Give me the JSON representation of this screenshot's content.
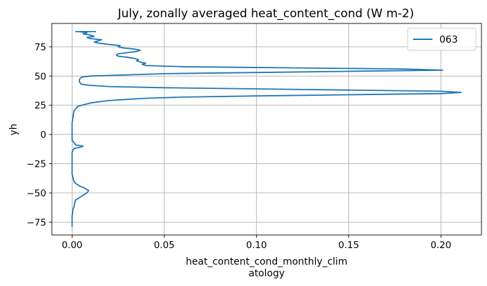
{
  "chart_data": {
    "type": "line",
    "title": "July, zonally averaged heat_content_cond (W m-2)",
    "xlabel_lines": [
      "heat_content_cond_monthly_clim",
      "atology"
    ],
    "ylabel": "yh",
    "xlim": [
      -0.011,
      0.222
    ],
    "ylim": [
      -86,
      95
    ],
    "xticks": [
      0.0,
      0.05,
      0.1,
      0.15,
      0.2
    ],
    "xtick_labels": [
      "0.00",
      "0.05",
      "0.10",
      "0.15",
      "0.20"
    ],
    "yticks": [
      -75,
      -50,
      -25,
      0,
      25,
      50,
      75
    ],
    "ytick_labels": [
      "−75",
      "−50",
      "−25",
      "0",
      "25",
      "50",
      "75"
    ],
    "grid": true,
    "legend_position": "top-right",
    "series": [
      {
        "name": "063",
        "color": "#1f77b4",
        "x": [
          0.0,
          0.0,
          0.0005,
          0.001,
          0.0012,
          0.0015,
          0.002,
          0.004,
          0.006,
          0.008,
          0.009,
          0.007,
          0.004,
          0.002,
          0.001,
          0.0005,
          0.0,
          0.0,
          0.0,
          0.0,
          0.0,
          0.001,
          0.004,
          0.006,
          0.002,
          0.0,
          0.0,
          0.0,
          0.001,
          0.003,
          0.01,
          0.02,
          0.03,
          0.04,
          0.06,
          0.1,
          0.15,
          0.2,
          0.211,
          0.2,
          0.15,
          0.1,
          0.05,
          0.02,
          0.01,
          0.005,
          0.004,
          0.004,
          0.005,
          0.01,
          0.03,
          0.05,
          0.1,
          0.15,
          0.201,
          0.18,
          0.12,
          0.06,
          0.04,
          0.038,
          0.04,
          0.037,
          0.035,
          0.036,
          0.034,
          0.03,
          0.025,
          0.024,
          0.025,
          0.03,
          0.035,
          0.037,
          0.034,
          0.028,
          0.025,
          0.026,
          0.02,
          0.015,
          0.012,
          0.014,
          0.016,
          0.01,
          0.008,
          0.012,
          0.01,
          0.006,
          0.008,
          0.004,
          0.002,
          0.005,
          0.003,
          0.013,
          0.013
        ],
        "y": [
          -79,
          -70,
          -64,
          -62,
          -60,
          -58,
          -56,
          -54,
          -52,
          -50,
          -48,
          -46,
          -44,
          -42,
          -40,
          -37,
          -34,
          -30,
          -25,
          -20,
          -15,
          -12,
          -11,
          -10,
          -9,
          -5,
          0,
          10,
          20,
          24,
          27,
          29,
          30,
          31,
          32,
          33,
          34,
          35,
          36,
          37,
          38,
          39,
          40,
          41,
          42,
          43,
          45,
          47,
          49,
          50,
          51,
          52,
          53,
          54,
          55,
          56,
          57,
          58,
          59,
          60,
          61,
          62,
          63,
          64,
          65,
          66,
          67,
          68,
          69,
          70,
          71,
          72,
          73,
          74,
          75,
          76,
          77,
          78,
          79,
          80,
          81,
          82,
          83,
          84,
          85,
          86,
          87,
          88,
          88,
          88,
          88,
          88,
          88
        ]
      }
    ]
  }
}
